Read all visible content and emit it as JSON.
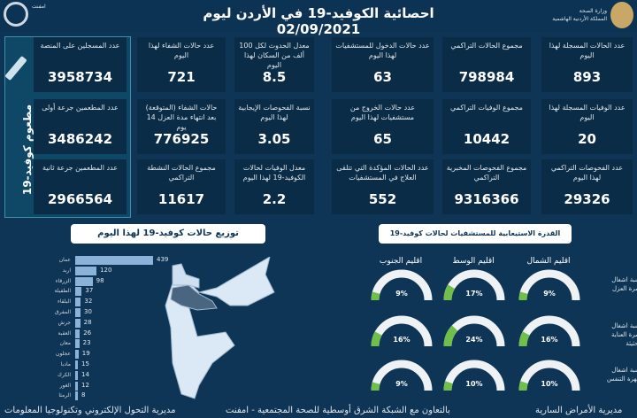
{
  "header": {
    "title": "احصائية الكوفيد-19 في الأردن ليوم",
    "date": "02/09/2021",
    "ministry_line1": "وزارة الصحة",
    "ministry_line2": "المملكة الأردنية الهاشمية",
    "partner_name": "امفنت"
  },
  "vaccine": {
    "label": "مطعوم كوفيد-19",
    "icon": "syringe-icon",
    "cards": [
      {
        "label": "عدد المسجلين على المنصة",
        "value": "3958734"
      },
      {
        "label": "عدد المطعمين جرعة أولى",
        "value": "3486242"
      },
      {
        "label": "عدد المطعمين جرعة ثانية",
        "value": "2966564"
      }
    ]
  },
  "stats": [
    {
      "label": "عدد الحالات المسجلة لهذا اليوم",
      "value": "893"
    },
    {
      "label": "مجموع الحالات التراكمي",
      "value": "798984"
    },
    {
      "label": "عدد حالات الدخول للمستشفيات لهذا اليوم",
      "value": "63"
    },
    {
      "label": "معدل الحدوث لكل 100 ألف من السكان لهذا اليوم",
      "value": "8.5"
    },
    {
      "label": "عدد حالات الشفاء لهذا اليوم",
      "value": "721"
    },
    {
      "label": "عدد الوفيات المسجلة لهذا اليوم",
      "value": "20"
    },
    {
      "label": "مجموع الوفيات التراكمي",
      "value": "10442"
    },
    {
      "label": "عدد حالات الخروج من مستشفيات لهذا اليوم",
      "value": "65"
    },
    {
      "label": "نسبة الفحوصات الإيجابية لهذا اليوم",
      "value": "3.05"
    },
    {
      "label": "حالات الشفاء (المتوقعة) بعد انتهاء مدة العزل 14 يوم",
      "value": "776925"
    },
    {
      "label": "عدد الفحوصات التراكمي لهذا اليوم",
      "value": "29326"
    },
    {
      "label": "مجموع الفحوصات المخبرية التراكمي",
      "value": "9316366"
    },
    {
      "label": "عدد الحالات المؤكدة التي تتلقى العلاج في المستشفيات",
      "value": "552"
    },
    {
      "label": "معدل الوفيات لحالات الكوفيد-19 لهذا اليوم",
      "value": "2.2"
    },
    {
      "label": "مجموع الحالات النشطة التراكمي",
      "value": "11617"
    }
  ],
  "distribution": {
    "title": "توزيع حالات كوفيد-19 لهذا اليوم",
    "bar_color": "#8bb2d9",
    "items": [
      {
        "label": "عمان",
        "value": 439
      },
      {
        "label": "اربد",
        "value": 120
      },
      {
        "label": "الزرقاء",
        "value": 98
      },
      {
        "label": "الطفيلة",
        "value": 37
      },
      {
        "label": "البلقاء",
        "value": 32
      },
      {
        "label": "المفرق",
        "value": 30
      },
      {
        "label": "جرش",
        "value": 28
      },
      {
        "label": "العقبة",
        "value": 26
      },
      {
        "label": "معان",
        "value": 23
      },
      {
        "label": "عجلون",
        "value": 19
      },
      {
        "label": "مادبا",
        "value": 15
      },
      {
        "label": "الكرك",
        "value": 14
      },
      {
        "label": "الغور",
        "value": 12
      },
      {
        "label": "الرمثا",
        "value": 8
      }
    ]
  },
  "capacity": {
    "title": "القدرة الاستيعابية للمستشفيات لحالات كوفيد-19",
    "gauge_color": "#6fbf4a",
    "regions": [
      "اقليم الشمال",
      "اقليم الوسط",
      "اقليم الجنوب"
    ],
    "rows": [
      {
        "label": "نسبة اشغال أسرة العزل",
        "values": [
          "9%",
          "17%",
          "9%"
        ],
        "fractions": [
          0.09,
          0.17,
          0.09
        ]
      },
      {
        "label": "نسبة اشغال أسرة العناية الحثيثة",
        "values": [
          "16%",
          "24%",
          "16%"
        ],
        "fractions": [
          0.16,
          0.24,
          0.16
        ]
      },
      {
        "label": "نسبة اشغال أجهزة التنفس",
        "values": [
          "10%",
          "10%",
          "9%"
        ],
        "fractions": [
          0.1,
          0.1,
          0.09
        ]
      }
    ]
  },
  "footer": {
    "left": "مديرية التحول الإلكتروني وتكنولوجيا المعلومات",
    "middle": "بالتعاون مع الشبكة الشرق أوسطية للصحة المجتمعية - امفنت",
    "right": "مديرية الأمراض السارية"
  }
}
